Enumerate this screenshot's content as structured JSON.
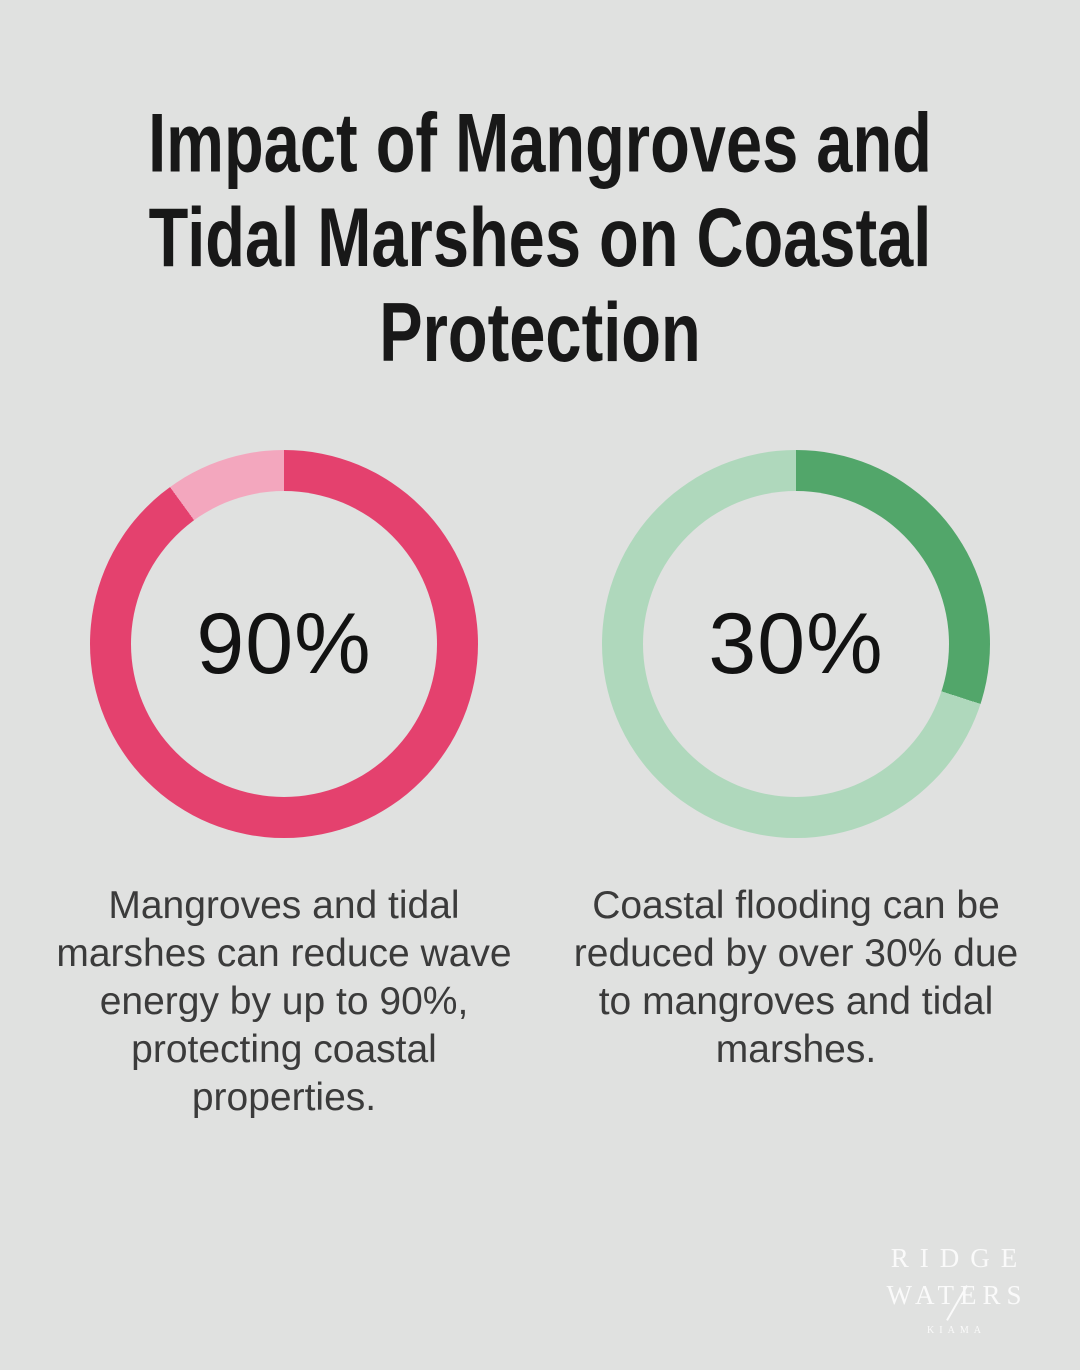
{
  "title": "Impact of Mangroves and Tidal Marshes on Coastal Protection",
  "title_lines": [
    "Impact of Mangroves and",
    "Tidal Marshes on Coastal",
    "Protection"
  ],
  "background_color": "#e0e1e0",
  "charts": [
    {
      "percent": 90,
      "center_label": "90%",
      "color_main": "#e4416e",
      "color_rest": "#f3a7be",
      "caption": "Mangroves and tidal marshes can reduce wave energy by up to 90%, protecting coastal properties.",
      "caption_lines": [
        "Mangroves and tidal",
        "marshes can reduce wave",
        "energy by up to 90%,",
        "protecting coastal",
        "properties."
      ]
    },
    {
      "percent": 30,
      "center_label": "30%",
      "color_main": "#52a66a",
      "color_rest": "#afd8bc",
      "caption": "Coastal flooding can be reduced by over 30% due to mangroves and tidal marshes.",
      "caption_lines": [
        "Coastal flooding can be",
        "reduced by over 30% due",
        "to mangroves and tidal",
        "marshes."
      ]
    }
  ],
  "logo": {
    "line1": "RIDGE",
    "line2": "WATERS",
    "line3": "KIAMA"
  },
  "chart_data": [
    {
      "type": "pie",
      "subtype": "donut",
      "center_label": "90%",
      "values": [
        90,
        10
      ],
      "colors": [
        "#e4416e",
        "#f3a7be"
      ],
      "start_angle_deg": 0,
      "direction": "clockwise",
      "title": "Wave energy reduction ring — 90%",
      "caption": "Mangroves and tidal marshes can reduce wave energy by up to 90%, protecting coastal properties."
    },
    {
      "type": "pie",
      "subtype": "donut",
      "center_label": "30%",
      "values": [
        30,
        70
      ],
      "colors": [
        "#52a66a",
        "#afd8bc"
      ],
      "start_angle_deg": 0,
      "direction": "clockwise",
      "title": "Coastal flooding reduction ring — 30%",
      "caption": "Coastal flooding can be reduced by over 30% due to mangroves and tidal marshes."
    }
  ]
}
